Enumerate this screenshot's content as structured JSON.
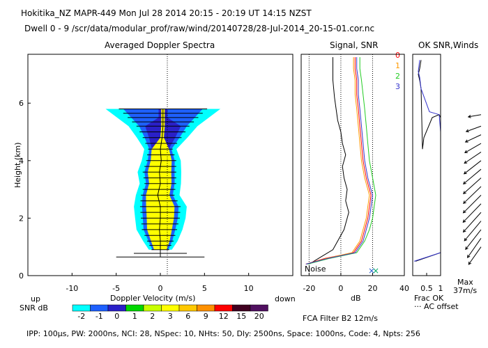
{
  "header": {
    "title": "Hokitika_NZ   MAPR-449   Mon Jul 28 2014 20:15 - 20:19 UT 14:15 NZST",
    "dwell": "Dwell   0 -  9   /scr/data/modular_prof/raw/wind/20140728/28-Jul-2014_20-15-01.cor.nc"
  },
  "panels": {
    "spectra_title": "Averaged Doppler Spectra",
    "signal_title": "Signal, SNR",
    "ok_title": "OK SNR,Winds",
    "noise_label": "Noise"
  },
  "beams": {
    "labels": [
      "0",
      "1",
      "2",
      "3"
    ],
    "colors": [
      "#ff0000",
      "#ff9900",
      "#22cc22",
      "#3333cc"
    ]
  },
  "colorbar": {
    "up_label": "up",
    "down_label": "down",
    "snr_label": "SNR dB",
    "ticks": [
      "-2",
      "-1",
      "0",
      "1",
      "2",
      "3",
      "6",
      "9",
      "12",
      "15",
      "20"
    ],
    "colors": [
      "#00ffff",
      "#1e60ff",
      "#2a20c8",
      "#00d800",
      "#c8ff00",
      "#ffff00",
      "#ffc800",
      "#ff9000",
      "#ff0000",
      "#400020",
      "#501060"
    ]
  },
  "right_labels": {
    "max": "Max",
    "max_speed": "37m/s",
    "frac_ok": "Frac OK",
    "ac_offset": "··· AC offset",
    "fca": "FCA Filter B2 12m/s"
  },
  "footer": {
    "params": "IPP: 100µs,  PW: 2000ns,  NCI:  28,  NSpec: 10,  NHts: 50,  Dly: 2500ns,  Space: 1000ns,  Code: 4,  Npts: 256"
  },
  "chart_data": [
    {
      "type": "heatmap",
      "title": "Averaged Doppler Spectra",
      "xlabel": "Doppler Velocity (m/s)",
      "ylabel": "Height (km)",
      "xlim": [
        -15,
        15
      ],
      "ylim": [
        0,
        7.7
      ],
      "xticks": [
        -10,
        -5,
        0,
        5,
        10
      ],
      "yticks": [
        0,
        2,
        4,
        6
      ],
      "profile": {
        "height": [
          0.65,
          0.9,
          1.2,
          1.6,
          2.0,
          2.4,
          2.8,
          3.2,
          3.6,
          4.0,
          4.4,
          4.8,
          5.2,
          5.5,
          5.8
        ],
        "velocity": [
          0.0,
          0.0,
          0.0,
          -0.1,
          0.0,
          0.0,
          -0.3,
          0.0,
          -0.1,
          0.1,
          0.0,
          0.2,
          0.3,
          0.3,
          0.3
        ],
        "width": [
          5.0,
          1.0,
          1.5,
          2.0,
          2.2,
          2.3,
          1.9,
          1.8,
          1.9,
          1.7,
          1.4,
          2.2,
          3.0,
          4.0,
          5.0
        ]
      }
    },
    {
      "type": "line",
      "title": "Signal, SNR",
      "xlabel": "dB",
      "xlim": [
        -25,
        40
      ],
      "xticks": [
        -20,
        0,
        20,
        40
      ],
      "ylim": [
        0,
        7.7
      ],
      "series": [
        {
          "name": "Noise",
          "x": [
            -20,
            -14,
            -5,
            2,
            5,
            3,
            4,
            2,
            1,
            3,
            1,
            0,
            -2,
            -3,
            -4,
            -5,
            -5
          ],
          "y": [
            0.4,
            0.6,
            0.9,
            1.6,
            2.2,
            2.6,
            3.0,
            3.4,
            3.8,
            4.2,
            4.6,
            5.0,
            5.4,
            5.8,
            6.2,
            6.8,
            7.6
          ]
        },
        {
          "name": "0",
          "x": [
            -22,
            -10,
            8,
            13,
            15,
            17,
            18,
            19,
            16,
            14,
            13,
            12,
            11,
            10,
            10,
            9,
            9
          ],
          "y": [
            0.4,
            0.6,
            0.8,
            1.2,
            1.6,
            2.0,
            2.4,
            2.8,
            3.4,
            4.0,
            4.6,
            5.2,
            5.8,
            6.3,
            6.8,
            7.2,
            7.6
          ]
        },
        {
          "name": "1",
          "x": [
            -22,
            -9,
            7,
            12,
            14,
            16,
            17,
            18,
            15,
            13,
            12,
            11,
            10,
            9,
            9,
            8,
            8
          ],
          "y": [
            0.4,
            0.6,
            0.8,
            1.2,
            1.6,
            2.0,
            2.4,
            2.8,
            3.4,
            4.0,
            4.6,
            5.2,
            5.8,
            6.3,
            6.8,
            7.2,
            7.6
          ]
        },
        {
          "name": "2",
          "x": [
            -21,
            -7,
            10,
            15,
            18,
            20,
            21,
            22,
            20,
            18,
            17,
            16,
            15,
            14,
            13,
            12,
            12
          ],
          "y": [
            0.4,
            0.6,
            0.8,
            1.2,
            1.6,
            2.0,
            2.4,
            2.8,
            3.4,
            4.0,
            4.6,
            5.2,
            5.8,
            6.3,
            6.8,
            7.2,
            7.6
          ]
        },
        {
          "name": "3",
          "x": [
            -22,
            -8,
            9,
            14,
            16,
            18,
            19,
            20,
            17,
            15,
            14,
            13,
            12,
            11,
            11,
            10,
            10
          ],
          "y": [
            0.4,
            0.6,
            0.8,
            1.2,
            1.6,
            2.0,
            2.4,
            2.8,
            3.4,
            4.0,
            4.6,
            5.2,
            5.8,
            6.3,
            6.8,
            7.2,
            7.6
          ]
        }
      ]
    },
    {
      "type": "line",
      "title": "OK SNR,Winds",
      "xlabel": "Frac OK",
      "xlim": [
        0,
        1
      ],
      "xticks": [
        "0.5",
        "1"
      ],
      "ylim": [
        0,
        7.7
      ],
      "series": [
        {
          "name": "frac_ok_0",
          "x": [
            0.1,
            1.0,
            1.0,
            1.0,
            1.0,
            0.95,
            0.7,
            0.4,
            0.35,
            0.3,
            0.25,
            0.2,
            0.25,
            0.3
          ],
          "y": [
            0.5,
            0.8,
            2.5,
            4.5,
            5.5,
            5.6,
            5.5,
            4.8,
            4.4,
            6.5,
            6.8,
            7.0,
            7.2,
            7.5
          ]
        },
        {
          "name": "frac_ok_3",
          "x": [
            0.05,
            1.0,
            1.0,
            1.0,
            0.95,
            0.6,
            0.3,
            0.25,
            0.2,
            0.25
          ],
          "y": [
            0.5,
            0.8,
            2.5,
            5.0,
            5.6,
            5.7,
            6.5,
            6.9,
            7.1,
            7.5
          ]
        }
      ],
      "winds": {
        "max_speed_ms": 37,
        "height": [
          1.0,
          1.3,
          1.6,
          1.9,
          2.2,
          2.5,
          2.8,
          3.1,
          3.4,
          3.7,
          4.0,
          4.3,
          4.6,
          4.9,
          5.2,
          5.6
        ],
        "speed": [
          30,
          33,
          35,
          36,
          37,
          36,
          35,
          34,
          33,
          32,
          30,
          28,
          26,
          24,
          22,
          18
        ],
        "direction_deg": [
          35,
          35,
          38,
          40,
          42,
          44,
          45,
          46,
          48,
          50,
          52,
          56,
          60,
          65,
          70,
          80
        ]
      }
    }
  ]
}
